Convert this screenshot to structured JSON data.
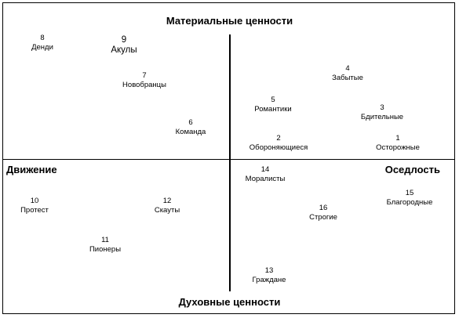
{
  "axes": {
    "top": "Материальные ценности",
    "bottom": "Духовные ценности",
    "left": "Движение",
    "right": "Оседлость"
  },
  "points": [
    {
      "num": "8",
      "name": "Денди"
    },
    {
      "num": "9",
      "name": "Акулы"
    },
    {
      "num": "7",
      "name": "Новобранцы"
    },
    {
      "num": "6",
      "name": "Команда"
    },
    {
      "num": "4",
      "name": "Забытые"
    },
    {
      "num": "5",
      "name": "Романтики"
    },
    {
      "num": "3",
      "name": "Бдительные"
    },
    {
      "num": "2",
      "name": "Обороняющиеся"
    },
    {
      "num": "1",
      "name": "Осторожные"
    },
    {
      "num": "14",
      "name": "Моралисты"
    },
    {
      "num": "15",
      "name": "Благородные"
    },
    {
      "num": "16",
      "name": "Строгие"
    },
    {
      "num": "10",
      "name": "Протест"
    },
    {
      "num": "12",
      "name": "Скауты"
    },
    {
      "num": "11",
      "name": "Пионеры"
    },
    {
      "num": "13",
      "name": "Граждане"
    }
  ]
}
